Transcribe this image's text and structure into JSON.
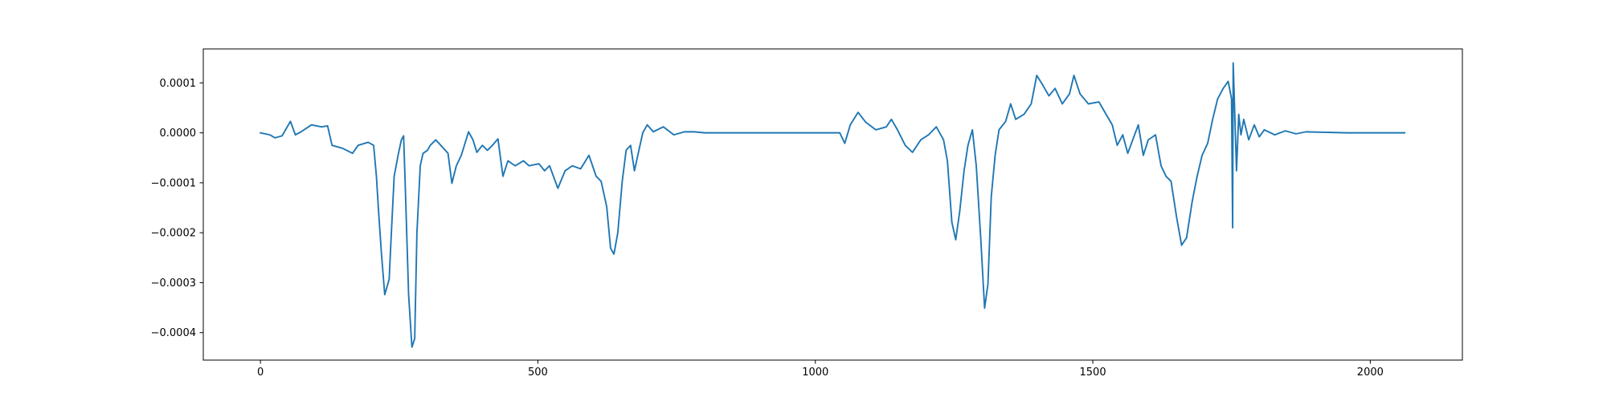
{
  "chart_data": {
    "type": "line",
    "color": "#1f77b4",
    "xlim": [
      -103,
      2166
    ],
    "xticks": [
      0,
      500,
      1000,
      1500,
      2000
    ],
    "ylim": [
      -0.000455,
      0.000168
    ],
    "yticks": [
      {
        "value": 0.0001,
        "label": "0.0001"
      },
      {
        "value": 0,
        "label": "0.0000"
      },
      {
        "value": -0.0001,
        "label": "−0.0001"
      },
      {
        "value": -0.0002,
        "label": "−0.0002"
      },
      {
        "value": -0.0003,
        "label": "−0.0003"
      },
      {
        "value": -0.0004,
        "label": "−0.0004"
      }
    ],
    "x": [
      0,
      17,
      26,
      39,
      54,
      63,
      73,
      92,
      110,
      121,
      129,
      148,
      166,
      176,
      194,
      204,
      209,
      213,
      218,
      224,
      232,
      235,
      241,
      248,
      254,
      258,
      261,
      267,
      273,
      278,
      282,
      288,
      293,
      301,
      306,
      316,
      325,
      338,
      345,
      353,
      362,
      375,
      383,
      390,
      400,
      409,
      418,
      428,
      437,
      446,
      459,
      474,
      484,
      502,
      512,
      521,
      536,
      549,
      562,
      577,
      592,
      605,
      614,
      624,
      631,
      637,
      644,
      652,
      659,
      667,
      674,
      682,
      689,
      697,
      708,
      726,
      745,
      764,
      782,
      801,
      838,
      932,
      1044,
      1053,
      1063,
      1077,
      1091,
      1109,
      1128,
      1137,
      1148,
      1162,
      1175,
      1190,
      1204,
      1218,
      1231,
      1238,
      1246,
      1253,
      1260,
      1268,
      1275,
      1283,
      1290,
      1298,
      1305,
      1311,
      1317,
      1324,
      1331,
      1343,
      1352,
      1361,
      1376,
      1389,
      1399,
      1408,
      1421,
      1432,
      1445,
      1458,
      1466,
      1477,
      1492,
      1511,
      1524,
      1535,
      1544,
      1554,
      1563,
      1572,
      1582,
      1591,
      1600,
      1613,
      1623,
      1632,
      1641,
      1651,
      1660,
      1669,
      1679,
      1688,
      1697,
      1707,
      1716,
      1725,
      1735,
      1744,
      1750,
      1752,
      1753,
      1759,
      1763,
      1767,
      1772,
      1781,
      1791,
      1800,
      1809,
      1828,
      1847,
      1866,
      1884,
      1959,
      2062
    ],
    "values": [
      0,
      -4e-06,
      -1e-05,
      -6e-06,
      2.3e-05,
      -4e-06,
      2e-06,
      1.6e-05,
      1.2e-05,
      1.4e-05,
      -2.5e-05,
      -3.1e-05,
      -4.1e-05,
      -2.5e-05,
      -1.9e-05,
      -2.5e-05,
      -8.7e-05,
      -0.000159,
      -0.000241,
      -0.000324,
      -0.000293,
      -0.000221,
      -8.7e-05,
      -4.5e-05,
      -1.4e-05,
      -6e-06,
      -0.000107,
      -0.000324,
      -0.000429,
      -0.000412,
      -0.0002,
      -6.6e-05,
      -4.1e-05,
      -3.5e-05,
      -2.5e-05,
      -1.4e-05,
      -2.5e-05,
      -4.1e-05,
      -0.000101,
      -6.6e-05,
      -4.5e-05,
      2e-06,
      -1.4e-05,
      -3.9e-05,
      -2.5e-05,
      -3.5e-05,
      -2.5e-05,
      -1.2e-05,
      -8.7e-05,
      -5.6e-05,
      -6.6e-05,
      -5.6e-05,
      -6.6e-05,
      -6.2e-05,
      -7.6e-05,
      -6.6e-05,
      -0.000111,
      -7.6e-05,
      -6.6e-05,
      -7.2e-05,
      -4.5e-05,
      -8.7e-05,
      -9.7e-05,
      -0.000148,
      -0.000231,
      -0.000243,
      -0.0002,
      -9.7e-05,
      -3.5e-05,
      -2.5e-05,
      -7.6e-05,
      -3.5e-05,
      0,
      1.6e-05,
      2e-06,
      1.2e-05,
      -4e-06,
      2e-06,
      2e-06,
      0,
      0,
      0,
      0,
      -2.1e-05,
      1.6e-05,
      4.1e-05,
      2.1e-05,
      6e-06,
      1.2e-05,
      2.7e-05,
      6e-06,
      -2.5e-05,
      -3.9e-05,
      -1.4e-05,
      -4e-06,
      1.2e-05,
      -1.4e-05,
      -5.6e-05,
      -0.000179,
      -0.000214,
      -0.000159,
      -7.6e-05,
      -2.5e-05,
      6e-06,
      -6.6e-05,
      -0.00021,
      -0.000351,
      -0.000303,
      -0.000128,
      -4.5e-05,
      6e-06,
      2.3e-05,
      5.8e-05,
      2.7e-05,
      3.7e-05,
      5.8e-05,
      0.000115,
      9.9e-05,
      7.4e-05,
      8.9e-05,
      5.8e-05,
      7.8e-05,
      0.000115,
      7.8e-05,
      5.8e-05,
      6.2e-05,
      3.7e-05,
      1.6e-05,
      -2.5e-05,
      -4e-06,
      -4.1e-05,
      -1.4e-05,
      1.6e-05,
      -4.5e-05,
      -1.4e-05,
      -4e-06,
      -6.6e-05,
      -8.7e-05,
      -9.7e-05,
      -0.000169,
      -0.000225,
      -0.00021,
      -0.000138,
      -8.7e-05,
      -4.5e-05,
      -2.1e-05,
      2.7e-05,
      6.8e-05,
      8.9e-05,
      0.000103,
      6.8e-05,
      -0.00019,
      0.00014,
      -7.6e-05,
      3.7e-05,
      -4e-06,
      2.7e-05,
      -1.4e-05,
      1.6e-05,
      -8e-06,
      6e-06,
      -4e-06,
      4e-06,
      -2e-06,
      2e-06,
      0,
      0
    ]
  }
}
